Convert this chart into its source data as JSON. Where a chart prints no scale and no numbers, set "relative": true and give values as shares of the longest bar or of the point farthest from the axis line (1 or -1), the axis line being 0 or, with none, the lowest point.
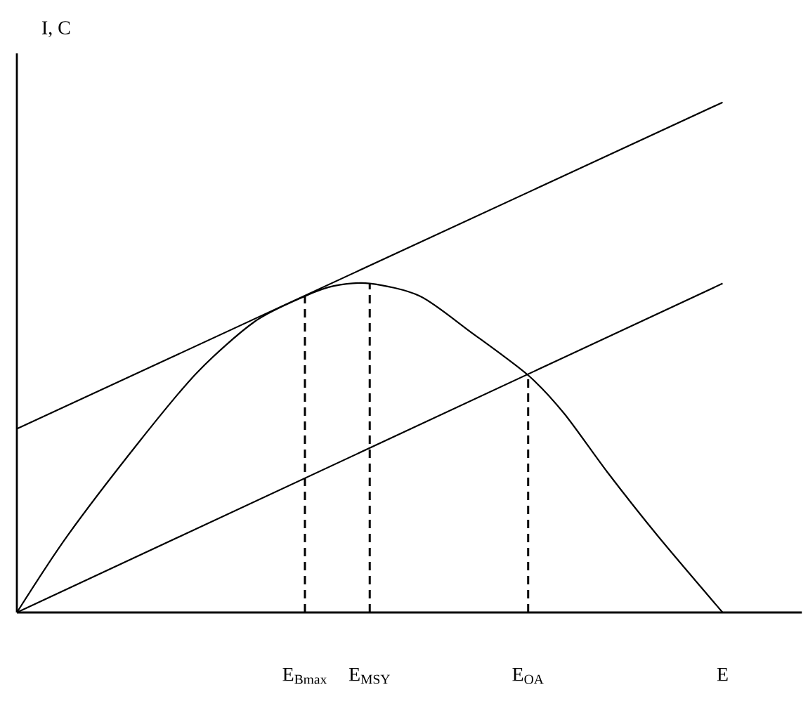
{
  "chart_data": {
    "type": "line",
    "relative": true,
    "ylabel": "I, C",
    "categories": [
      null,
      null,
      null,
      null,
      null,
      null,
      null,
      null,
      null,
      null,
      null,
      null,
      null,
      null,
      null,
      null,
      null,
      null,
      null,
      null,
      null,
      null,
      null,
      null,
      null,
      null,
      null,
      null,
      null,
      null,
      null,
      null,
      null,
      null,
      null,
      null,
      null,
      null,
      null,
      null,
      "E$_{Bmax}$",
      null,
      null,
      null,
      null,
      null,
      null,
      null,
      null,
      "E$_{MSY}$",
      null,
      null,
      null,
      null,
      null,
      null,
      null,
      null,
      null,
      null,
      null,
      null,
      null,
      null,
      null,
      null,
      null,
      null,
      null,
      null,
      null,
      "E$_{OA}$",
      null,
      null,
      null,
      null,
      null,
      null,
      null,
      null,
      null,
      null,
      null,
      null,
      null,
      null,
      null,
      null,
      null,
      null,
      null,
      null,
      null,
      null,
      null,
      null,
      null,
      null,
      "E",
      null,
      null,
      null,
      null,
      null,
      null,
      null,
      null,
      null,
      null,
      null
    ],
    "series": [
      {
        "color": "#000000",
        "values": [
          0,
          null,
          null,
          null,
          null,
          null,
          null,
          0.15,
          null,
          null,
          null,
          null,
          null,
          null,
          null,
          null,
          null,
          0.335,
          null,
          null,
          null,
          null,
          null,
          null,
          null,
          0.47,
          null,
          null,
          null,
          null,
          null,
          null,
          null,
          0.57,
          null,
          null,
          null,
          null,
          null,
          null,
          0.62,
          null,
          null,
          null,
          0.64,
          null,
          null,
          null,
          null,
          0.645,
          null,
          null,
          null,
          null,
          null,
          null,
          0.62,
          null,
          null,
          null,
          null,
          null,
          null,
          0.55,
          null,
          null,
          null,
          null,
          null,
          null,
          null,
          0.465,
          null,
          null,
          null,
          null,
          0.39,
          null,
          null,
          null,
          null,
          null,
          0.275,
          null,
          null,
          null,
          null,
          null,
          null,
          0.15,
          null,
          null,
          null,
          null,
          null,
          null,
          null,
          null,
          0,
          null,
          null,
          null,
          null,
          null,
          null,
          null,
          null,
          null,
          null,
          null
        ]
      },
      {
        "color": "#000000",
        "values": [
          0.36,
          null,
          null,
          null,
          null,
          null,
          null,
          null,
          null,
          null,
          null,
          null,
          null,
          null,
          null,
          null,
          null,
          null,
          null,
          null,
          null,
          null,
          null,
          null,
          null,
          null,
          null,
          null,
          null,
          null,
          null,
          null,
          null,
          null,
          null,
          null,
          null,
          null,
          null,
          null,
          null,
          null,
          null,
          null,
          null,
          null,
          null,
          null,
          null,
          null,
          null,
          null,
          null,
          null,
          null,
          null,
          null,
          null,
          null,
          null,
          null,
          null,
          null,
          null,
          null,
          null,
          null,
          null,
          null,
          null,
          null,
          null,
          null,
          null,
          null,
          null,
          null,
          null,
          null,
          null,
          null,
          null,
          null,
          null,
          null,
          null,
          null,
          null,
          null,
          null,
          null,
          null,
          null,
          null,
          null,
          null,
          null,
          null,
          1,
          null,
          null,
          null,
          null,
          null,
          null,
          null,
          null,
          null,
          null,
          null
        ]
      },
      {
        "color": "#000000",
        "values": [
          0,
          null,
          null,
          null,
          null,
          null,
          null,
          null,
          null,
          null,
          null,
          null,
          null,
          null,
          null,
          null,
          null,
          null,
          null,
          null,
          null,
          null,
          null,
          null,
          null,
          null,
          null,
          null,
          null,
          null,
          null,
          null,
          null,
          null,
          null,
          null,
          null,
          null,
          null,
          null,
          null,
          null,
          null,
          null,
          null,
          null,
          null,
          null,
          null,
          null,
          null,
          null,
          null,
          null,
          null,
          null,
          null,
          null,
          null,
          null,
          null,
          null,
          null,
          null,
          null,
          null,
          null,
          null,
          null,
          null,
          null,
          null,
          null,
          null,
          null,
          null,
          null,
          null,
          null,
          null,
          null,
          null,
          null,
          null,
          null,
          null,
          null,
          null,
          null,
          null,
          null,
          null,
          null,
          null,
          null,
          null,
          null,
          null,
          0.645,
          null,
          null,
          null,
          null,
          null,
          null,
          null,
          null,
          null,
          null,
          null
        ]
      }
    ],
    "ref_lines": [
      {
        "axis": "x",
        "value": "E$_{Bmax}$",
        "line_style": "dashed",
        "color": "#000000"
      },
      {
        "axis": "x",
        "value": "E$_{MSY}$",
        "line_style": "dashed",
        "color": "#000000"
      },
      {
        "axis": "x",
        "value": "E$_{OA}$",
        "line_style": "dashed",
        "color": "#000000"
      }
    ]
  }
}
